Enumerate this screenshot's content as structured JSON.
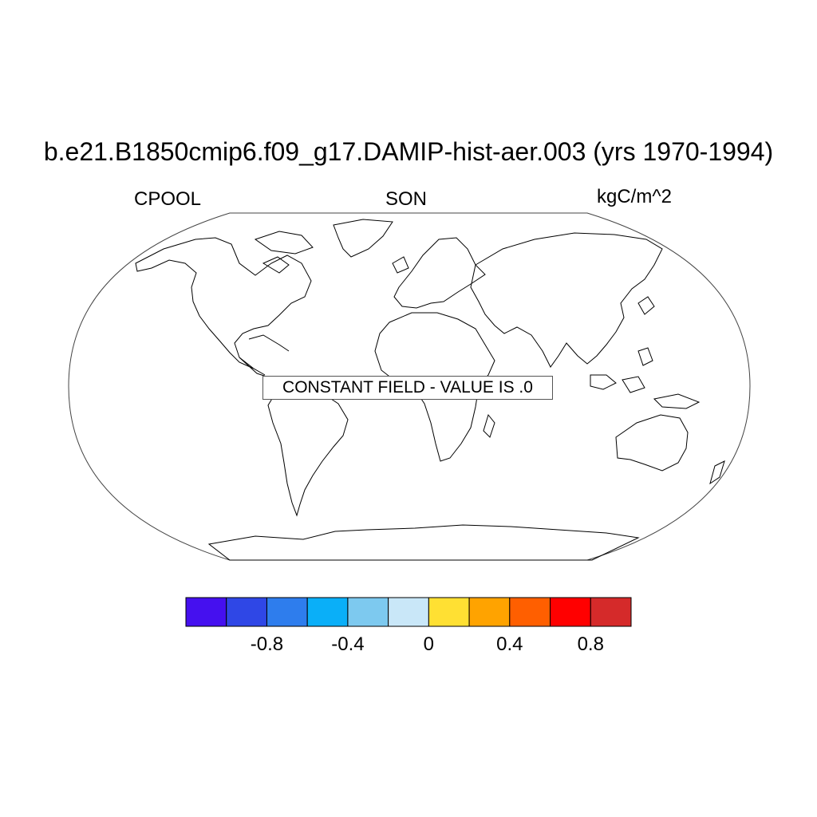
{
  "title": "b.e21.B1850cmip6.f09_g17.DAMIP-hist-aer.003 (yrs 1970-1994)",
  "left_label": "CPOOL",
  "center_label": "SON",
  "right_label": "kgC/m^2",
  "notice": "CONSTANT FIELD - VALUE IS .0",
  "colorbar": {
    "colors": [
      "#4510ef",
      "#2f47e6",
      "#2e7ded",
      "#0aaff8",
      "#7dc9ef",
      "#c9e7f8",
      "#ffe033",
      "#ffa300",
      "#ff5f00",
      "#ff0000",
      "#d52a2a"
    ],
    "ticks": [
      "-0.8",
      "-0.4",
      "0",
      "0.4",
      "0.8"
    ]
  }
}
